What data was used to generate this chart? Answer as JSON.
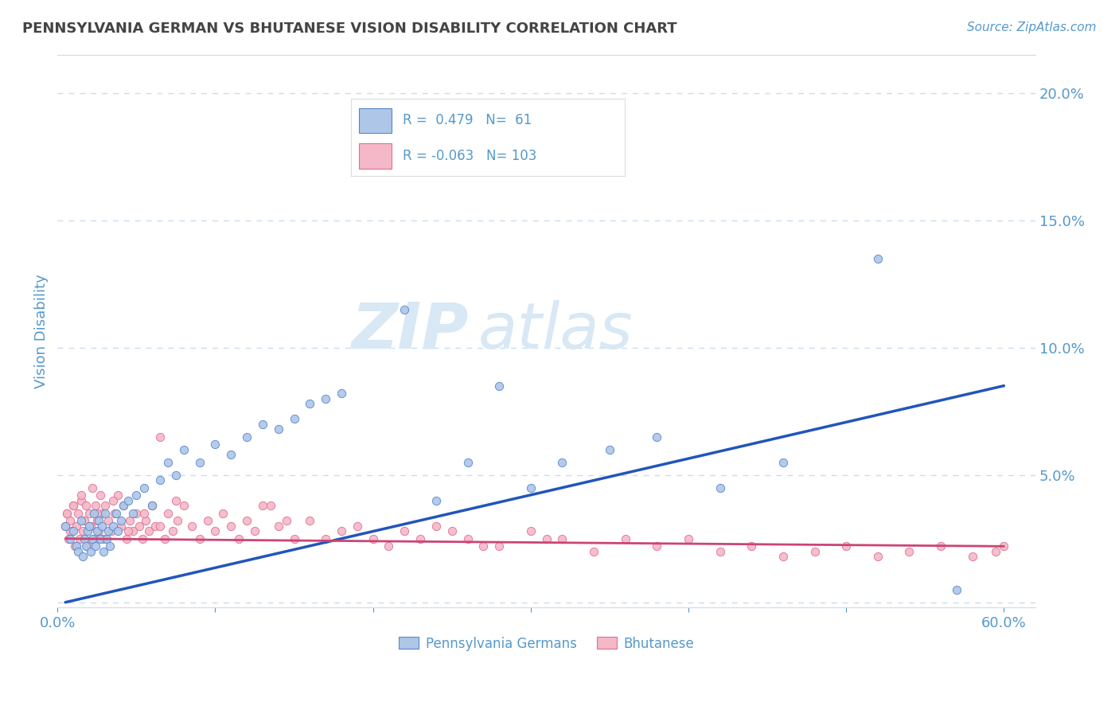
{
  "title": "PENNSYLVANIA GERMAN VS BHUTANESE VISION DISABILITY CORRELATION CHART",
  "source_text": "Source: ZipAtlas.com",
  "ylabel": "Vision Disability",
  "xlim": [
    0.0,
    0.62
  ],
  "ylim": [
    -0.002,
    0.215
  ],
  "yticks": [
    0.0,
    0.05,
    0.1,
    0.15,
    0.2
  ],
  "ytick_labels": [
    "",
    "5.0%",
    "10.0%",
    "15.0%",
    "20.0%"
  ],
  "xticks": [
    0.0,
    0.1,
    0.2,
    0.3,
    0.4,
    0.5,
    0.6
  ],
  "xtick_labels": [
    "0.0%",
    "",
    "",
    "",
    "",
    "",
    "60.0%"
  ],
  "blue_R": 0.479,
  "blue_N": 61,
  "pink_R": -0.063,
  "pink_N": 103,
  "blue_color": "#aec6e8",
  "pink_color": "#f4b8c8",
  "blue_edge_color": "#5588cc",
  "pink_edge_color": "#e07090",
  "blue_line_color": "#2255bb",
  "pink_line_color": "#cc4477",
  "axis_color": "#5599cc",
  "grid_color": "#c8ddf0",
  "background_color": "#ffffff",
  "watermark_color": "#d8e8f4",
  "legend_label_blue": "Pennsylvania Germans",
  "legend_label_pink": "Bhutanese",
  "blue_trend": [
    0.005,
    0.0,
    0.6,
    0.085
  ],
  "pink_trend": [
    0.005,
    0.025,
    0.6,
    0.022
  ],
  "blue_scatter_x": [
    0.005,
    0.008,
    0.01,
    0.012,
    0.013,
    0.015,
    0.016,
    0.017,
    0.018,
    0.019,
    0.02,
    0.021,
    0.022,
    0.023,
    0.024,
    0.025,
    0.026,
    0.027,
    0.028,
    0.029,
    0.03,
    0.031,
    0.032,
    0.033,
    0.035,
    0.037,
    0.038,
    0.04,
    0.042,
    0.045,
    0.048,
    0.05,
    0.055,
    0.06,
    0.065,
    0.07,
    0.075,
    0.08,
    0.09,
    0.1,
    0.11,
    0.12,
    0.13,
    0.14,
    0.15,
    0.16,
    0.17,
    0.18,
    0.2,
    0.22,
    0.24,
    0.26,
    0.28,
    0.3,
    0.32,
    0.35,
    0.38,
    0.42,
    0.46,
    0.52,
    0.57
  ],
  "blue_scatter_y": [
    0.03,
    0.025,
    0.028,
    0.022,
    0.02,
    0.032,
    0.018,
    0.025,
    0.022,
    0.028,
    0.03,
    0.02,
    0.025,
    0.035,
    0.022,
    0.028,
    0.032,
    0.025,
    0.03,
    0.02,
    0.035,
    0.025,
    0.028,
    0.022,
    0.03,
    0.035,
    0.028,
    0.032,
    0.038,
    0.04,
    0.035,
    0.042,
    0.045,
    0.038,
    0.048,
    0.055,
    0.05,
    0.06,
    0.055,
    0.062,
    0.058,
    0.065,
    0.07,
    0.068,
    0.072,
    0.078,
    0.08,
    0.082,
    0.17,
    0.115,
    0.04,
    0.055,
    0.085,
    0.045,
    0.055,
    0.06,
    0.065,
    0.045,
    0.055,
    0.135,
    0.005
  ],
  "pink_scatter_x": [
    0.005,
    0.006,
    0.007,
    0.008,
    0.009,
    0.01,
    0.011,
    0.012,
    0.013,
    0.014,
    0.015,
    0.016,
    0.017,
    0.018,
    0.019,
    0.02,
    0.021,
    0.022,
    0.023,
    0.024,
    0.025,
    0.026,
    0.027,
    0.028,
    0.029,
    0.03,
    0.032,
    0.034,
    0.036,
    0.038,
    0.04,
    0.042,
    0.044,
    0.046,
    0.048,
    0.05,
    0.052,
    0.054,
    0.056,
    0.058,
    0.06,
    0.062,
    0.065,
    0.068,
    0.07,
    0.073,
    0.076,
    0.08,
    0.085,
    0.09,
    0.095,
    0.1,
    0.105,
    0.11,
    0.115,
    0.12,
    0.125,
    0.13,
    0.14,
    0.15,
    0.16,
    0.17,
    0.18,
    0.19,
    0.2,
    0.21,
    0.22,
    0.23,
    0.24,
    0.26,
    0.28,
    0.3,
    0.32,
    0.34,
    0.36,
    0.38,
    0.4,
    0.42,
    0.44,
    0.46,
    0.48,
    0.5,
    0.52,
    0.54,
    0.56,
    0.58,
    0.595,
    0.6,
    0.31,
    0.27,
    0.25,
    0.145,
    0.135,
    0.075,
    0.065,
    0.055,
    0.045,
    0.035,
    0.025,
    0.015,
    0.008,
    0.006,
    0.01
  ],
  "pink_scatter_y": [
    0.03,
    0.035,
    0.025,
    0.032,
    0.028,
    0.038,
    0.022,
    0.03,
    0.035,
    0.025,
    0.04,
    0.028,
    0.032,
    0.038,
    0.022,
    0.035,
    0.03,
    0.045,
    0.025,
    0.038,
    0.032,
    0.028,
    0.042,
    0.035,
    0.025,
    0.038,
    0.032,
    0.028,
    0.035,
    0.042,
    0.03,
    0.038,
    0.025,
    0.032,
    0.028,
    0.035,
    0.03,
    0.025,
    0.032,
    0.028,
    0.038,
    0.03,
    0.065,
    0.025,
    0.035,
    0.028,
    0.032,
    0.038,
    0.03,
    0.025,
    0.032,
    0.028,
    0.035,
    0.03,
    0.025,
    0.032,
    0.028,
    0.038,
    0.03,
    0.025,
    0.032,
    0.025,
    0.028,
    0.03,
    0.025,
    0.022,
    0.028,
    0.025,
    0.03,
    0.025,
    0.022,
    0.028,
    0.025,
    0.02,
    0.025,
    0.022,
    0.025,
    0.02,
    0.022,
    0.018,
    0.02,
    0.022,
    0.018,
    0.02,
    0.022,
    0.018,
    0.02,
    0.022,
    0.025,
    0.022,
    0.028,
    0.032,
    0.038,
    0.04,
    0.03,
    0.035,
    0.028,
    0.04,
    0.035,
    0.042,
    0.028,
    0.035,
    0.038
  ]
}
